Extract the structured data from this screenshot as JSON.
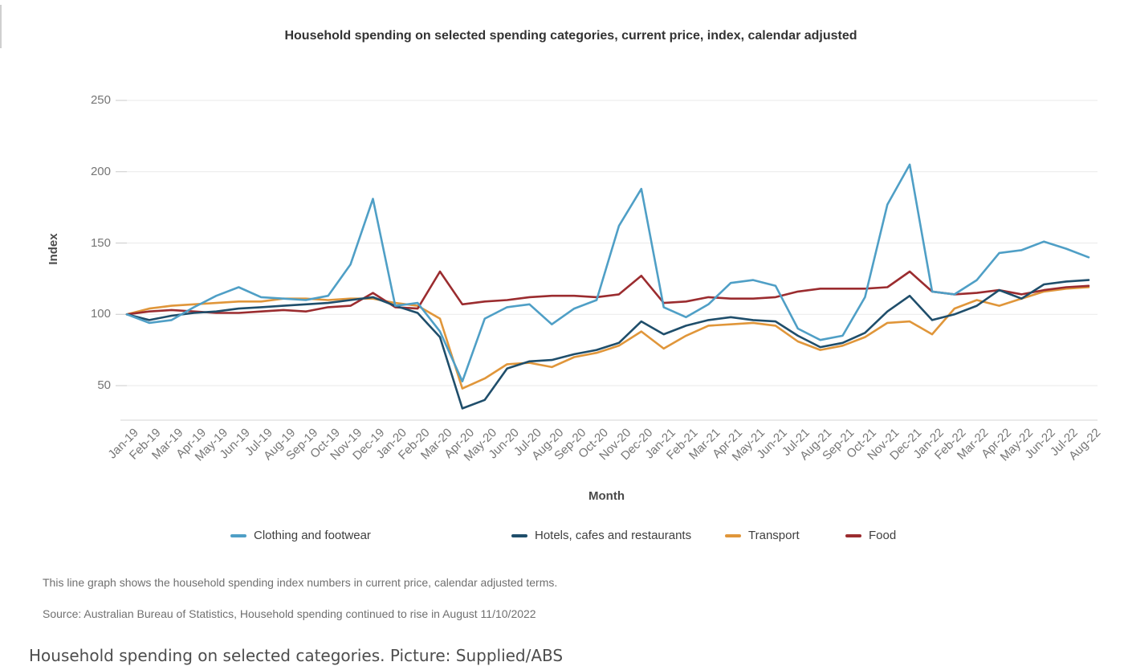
{
  "page": {
    "title": "Household spending on selected spending categories, current price, index, calendar adjusted",
    "description": "This line graph shows the household spending index numbers in current price, calendar adjusted terms.",
    "source": "Source: Australian Bureau of Statistics, Household spending continued to rise in August 11/10/2022",
    "caption": "Household spending on selected categories. Picture: Supplied/ABS"
  },
  "chart_data": {
    "type": "line",
    "title": "Household spending on selected spending categories, current price, index, calendar adjusted",
    "xlabel": "Month",
    "ylabel": "Index",
    "grid": true,
    "legend_position": "bottom",
    "y_ticks": [
      50,
      100,
      150,
      200,
      250
    ],
    "ylim": [
      25,
      250
    ],
    "x": [
      "Jan-19",
      "Feb-19",
      "Mar-19",
      "Apr-19",
      "May-19",
      "Jun-19",
      "Jul-19",
      "Aug-19",
      "Sep-19",
      "Oct-19",
      "Nov-19",
      "Dec-19",
      "Jan-20",
      "Feb-20",
      "Mar-20",
      "Apr-20",
      "May-20",
      "Jun-20",
      "Jul-20",
      "Aug-20",
      "Sep-20",
      "Oct-20",
      "Nov-20",
      "Dec-20",
      "Jan-21",
      "Feb-21",
      "Mar-21",
      "Apr-21",
      "May-21",
      "Jun-21",
      "Jul-21",
      "Aug-21",
      "Sep-21",
      "Oct-21",
      "Nov-21",
      "Dec-21",
      "Jan-22",
      "Feb-22",
      "Mar-22",
      "Apr-22",
      "May-22",
      "Jun-22",
      "Jul-22",
      "Aug-22"
    ],
    "series": [
      {
        "name": "Clothing and footwear",
        "color": "#4f9fc6",
        "values": [
          100,
          94,
          96,
          105,
          113,
          119,
          112,
          111,
          110,
          113,
          135,
          181,
          106,
          108,
          88,
          53,
          97,
          105,
          107,
          93,
          104,
          110,
          162,
          188,
          105,
          98,
          107,
          122,
          124,
          120,
          90,
          82,
          85,
          112,
          177,
          205,
          116,
          114,
          124,
          143,
          145,
          151,
          146,
          140
        ]
      },
      {
        "name": "Hotels, cafes and restaurants",
        "color": "#1f4e6b",
        "values": [
          100,
          96,
          99,
          101,
          102,
          104,
          105,
          106,
          107,
          108,
          110,
          112,
          106,
          101,
          84,
          34,
          40,
          62,
          67,
          68,
          72,
          75,
          80,
          95,
          86,
          92,
          96,
          98,
          96,
          95,
          85,
          77,
          80,
          87,
          102,
          113,
          96,
          100,
          106,
          117,
          111,
          121,
          123,
          124
        ]
      },
      {
        "name": "Transport",
        "color": "#e0963a",
        "values": [
          100,
          104,
          106,
          107,
          108,
          109,
          109,
          111,
          111,
          110,
          111,
          111,
          108,
          106,
          97,
          48,
          55,
          65,
          66,
          63,
          70,
          73,
          78,
          88,
          76,
          85,
          92,
          93,
          94,
          92,
          81,
          75,
          78,
          84,
          94,
          95,
          86,
          104,
          110,
          106,
          111,
          116,
          118,
          119
        ]
      },
      {
        "name": "Food",
        "color": "#9b2c2f",
        "values": [
          100,
          102,
          103,
          102,
          101,
          101,
          102,
          103,
          102,
          105,
          106,
          115,
          105,
          104,
          130,
          107,
          109,
          110,
          112,
          113,
          113,
          112,
          114,
          127,
          108,
          109,
          112,
          111,
          111,
          112,
          116,
          118,
          118,
          118,
          119,
          130,
          116,
          114,
          115,
          117,
          114,
          117,
          119,
          120
        ]
      }
    ]
  }
}
